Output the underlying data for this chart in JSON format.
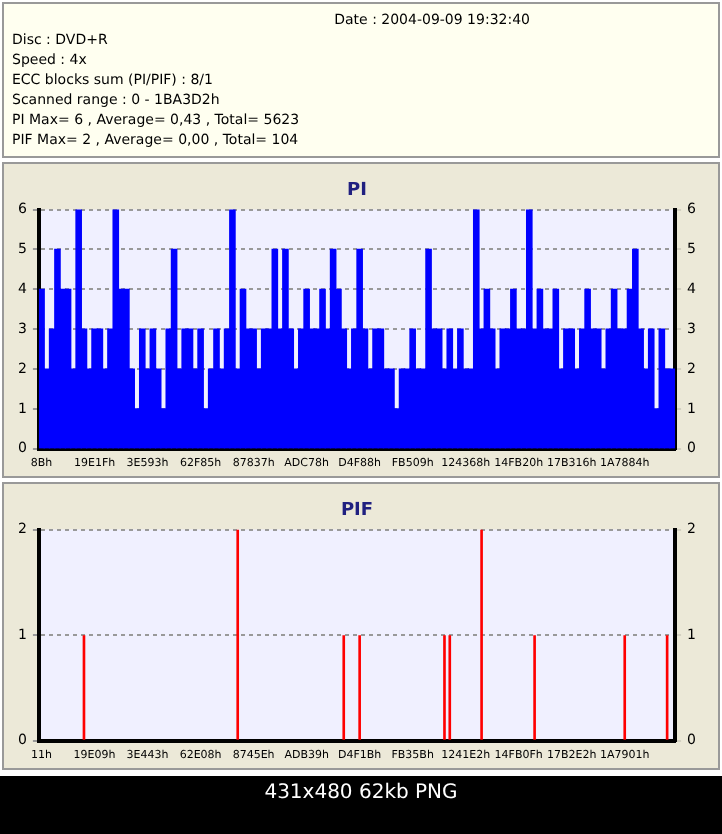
{
  "chart_data": [
    {
      "type": "bar",
      "title": "PI",
      "annotations": [
        "Date : 2004-09-09 19:32:40",
        "Disc : DVD+R",
        "Speed : 4x",
        "ECC blocks sum (PI/PIF) : 8/1",
        "Scanned range : 0 - 1BA3D2h",
        "PI Max= 6 , Average= 0,43 , Total= 5623"
      ],
      "categories": [
        "8Bh",
        null,
        null,
        null,
        null,
        null,
        null,
        null,
        null,
        null,
        "19E1Fh",
        null,
        null,
        null,
        null,
        null,
        null,
        null,
        null,
        null,
        "3E593h",
        null,
        null,
        null,
        null,
        null,
        null,
        null,
        null,
        null,
        "62F85h",
        null,
        null,
        null,
        null,
        null,
        null,
        null,
        null,
        null,
        "87837h",
        null,
        null,
        null,
        null,
        null,
        null,
        null,
        null,
        null,
        "ADC78h",
        null,
        null,
        null,
        null,
        null,
        null,
        null,
        null,
        null,
        "D4F88h",
        null,
        null,
        null,
        null,
        null,
        null,
        null,
        null,
        null,
        "FB509h",
        null,
        null,
        null,
        null,
        null,
        null,
        null,
        null,
        null,
        "124368h",
        null,
        null,
        null,
        null,
        null,
        null,
        null,
        null,
        null,
        "14FB20h",
        null,
        null,
        null,
        null,
        null,
        null,
        null,
        null,
        null,
        "17B316h",
        null,
        null,
        null,
        null,
        null,
        null,
        null,
        null,
        null,
        "1A7884h",
        null,
        null,
        null,
        null,
        null,
        null,
        null,
        null,
        null
      ],
      "series": [
        {
          "color": "#0000ff",
          "values": [
            4,
            2,
            3,
            5,
            4,
            4,
            2,
            6,
            3,
            2,
            3,
            3,
            2,
            3,
            6,
            4,
            4,
            2,
            1,
            3,
            2,
            3,
            2,
            1,
            3,
            5,
            2,
            3,
            3,
            2,
            3,
            1,
            2,
            3,
            2,
            3,
            6,
            2,
            4,
            3,
            3,
            2,
            3,
            3,
            5,
            3,
            5,
            3,
            2,
            3,
            4,
            3,
            3,
            4,
            3,
            5,
            4,
            3,
            2,
            3,
            5,
            3,
            2,
            3,
            3,
            2,
            2,
            1,
            2,
            2,
            3,
            2,
            2,
            5,
            3,
            3,
            2,
            3,
            2,
            3,
            2,
            2,
            6,
            3,
            4,
            3,
            2,
            3,
            3,
            4,
            3,
            3,
            6,
            3,
            4,
            3,
            3,
            4,
            2,
            3,
            3,
            2,
            3,
            4,
            3,
            3,
            2,
            3,
            4,
            3,
            3,
            4,
            5,
            3,
            2,
            3,
            1,
            3,
            2,
            2
          ]
        }
      ],
      "ylim": [
        0,
        6
      ],
      "yticks": [
        0,
        1,
        2,
        3,
        4,
        5,
        6
      ],
      "y2lim": [
        0,
        6
      ],
      "y2ticks": [
        0,
        1,
        2,
        3,
        4,
        5,
        6
      ],
      "grid": "y",
      "legend": false
    },
    {
      "type": "bar",
      "title": "PIF",
      "annotations": [
        "PIF Max= 2 , Average= 0,00 , Total= 104",
        "431x480 62kb PNG"
      ],
      "categories": [
        "11h",
        null,
        null,
        null,
        null,
        null,
        null,
        null,
        null,
        null,
        "19E09h",
        null,
        null,
        null,
        null,
        null,
        null,
        null,
        null,
        null,
        "3E443h",
        null,
        null,
        null,
        null,
        null,
        null,
        null,
        null,
        null,
        "62E08h",
        null,
        null,
        null,
        null,
        null,
        null,
        null,
        null,
        null,
        "8745Eh",
        null,
        null,
        null,
        null,
        null,
        null,
        null,
        null,
        null,
        "ADB39h",
        null,
        null,
        null,
        null,
        null,
        null,
        null,
        null,
        null,
        "D4F1Bh",
        null,
        null,
        null,
        null,
        null,
        null,
        null,
        null,
        null,
        "FB35Bh",
        null,
        null,
        null,
        null,
        null,
        null,
        null,
        null,
        null,
        "1241E2h",
        null,
        null,
        null,
        null,
        null,
        null,
        null,
        null,
        null,
        "14FB0Fh",
        null,
        null,
        null,
        null,
        null,
        null,
        null,
        null,
        null,
        "17B2E2h",
        null,
        null,
        null,
        null,
        null,
        null,
        null,
        null,
        null,
        "1A7901h",
        null,
        null,
        null,
        null,
        null,
        null,
        null,
        null,
        null
      ],
      "series": [
        {
          "color": "#ff0000",
          "values": [
            0,
            0,
            0,
            0,
            0,
            0,
            0,
            0,
            1,
            0,
            0,
            0,
            0,
            0,
            0,
            0,
            0,
            0,
            0,
            0,
            0,
            0,
            0,
            0,
            0,
            0,
            0,
            0,
            0,
            0,
            0,
            0,
            0,
            0,
            0,
            0,
            0,
            2,
            0,
            0,
            0,
            0,
            0,
            0,
            0,
            0,
            0,
            0,
            0,
            0,
            0,
            0,
            0,
            0,
            0,
            0,
            0,
            1,
            0,
            0,
            1,
            0,
            0,
            0,
            0,
            0,
            0,
            0,
            0,
            0,
            0,
            0,
            0,
            0,
            0,
            0,
            1,
            1,
            0,
            0,
            0,
            0,
            0,
            2,
            0,
            0,
            0,
            0,
            0,
            0,
            0,
            0,
            0,
            1,
            0,
            0,
            0,
            0,
            0,
            0,
            0,
            0,
            0,
            0,
            0,
            0,
            0,
            0,
            0,
            0,
            1,
            0,
            0,
            0,
            0,
            0,
            0,
            0,
            1,
            0
          ]
        }
      ],
      "ylim": [
        0,
        2
      ],
      "yticks": [
        0,
        1,
        2
      ],
      "y2lim": [
        0,
        2
      ],
      "y2ticks": [
        0,
        1,
        2
      ],
      "grid": "y",
      "legend": false
    }
  ]
}
